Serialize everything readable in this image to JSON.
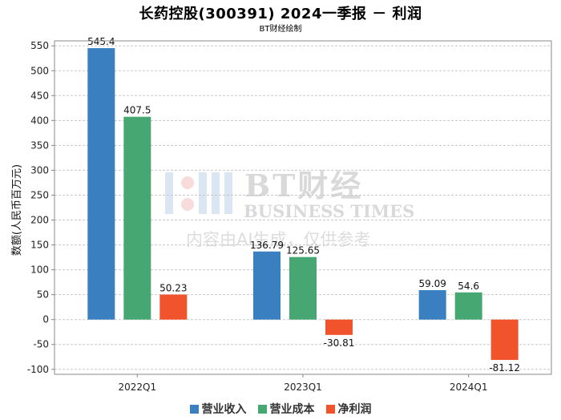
{
  "chart_data": {
    "type": "bar",
    "title": "长药控股(300391) 2024一季报 － 利润",
    "subtitle": "BT财经绘制",
    "ylabel": "数额(人民币百万元)",
    "xlabel": "",
    "categories": [
      "2022Q1",
      "2023Q1",
      "2024Q1"
    ],
    "series": [
      {
        "name": "营业收入",
        "color": "#3a80c1",
        "values": [
          545.4,
          136.79,
          59.09
        ],
        "labels": [
          "545.4",
          "136.79",
          "59.09"
        ]
      },
      {
        "name": "营业成本",
        "color": "#46a772",
        "values": [
          407.5,
          125.65,
          54.6
        ],
        "labels": [
          "407.5",
          "125.65",
          "54.6"
        ]
      },
      {
        "name": "净利润",
        "color": "#f1542c",
        "values": [
          50.23,
          -30.81,
          -81.12
        ],
        "labels": [
          "50.23",
          "-30.81",
          "-81.12"
        ]
      }
    ],
    "ylim": [
      -100,
      550
    ],
    "ytick_step": 50,
    "grid": true,
    "legend_position": "bottom"
  },
  "watermark": {
    "logo_text": "BT财经",
    "logo_subtext": "BUSINESS TIMES",
    "note": "内容由AI生成，仅供参考"
  }
}
